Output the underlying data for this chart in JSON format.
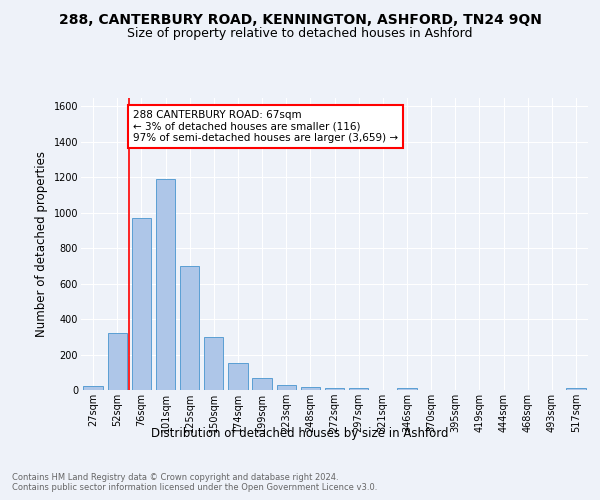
{
  "title": "288, CANTERBURY ROAD, KENNINGTON, ASHFORD, TN24 9QN",
  "subtitle": "Size of property relative to detached houses in Ashford",
  "xlabel": "Distribution of detached houses by size in Ashford",
  "ylabel": "Number of detached properties",
  "footnote": "Contains HM Land Registry data © Crown copyright and database right 2024.\nContains public sector information licensed under the Open Government Licence v3.0.",
  "bins": [
    "27sqm",
    "52sqm",
    "76sqm",
    "101sqm",
    "125sqm",
    "150sqm",
    "174sqm",
    "199sqm",
    "223sqm",
    "248sqm",
    "272sqm",
    "297sqm",
    "321sqm",
    "346sqm",
    "370sqm",
    "395sqm",
    "419sqm",
    "444sqm",
    "468sqm",
    "493sqm",
    "517sqm"
  ],
  "values": [
    25,
    320,
    970,
    1190,
    700,
    300,
    150,
    70,
    30,
    15,
    10,
    10,
    0,
    10,
    0,
    0,
    0,
    0,
    0,
    0,
    10
  ],
  "bar_color": "#aec6e8",
  "bar_edge_color": "#5a9fd4",
  "vline_color": "red",
  "annotation_text": "288 CANTERBURY ROAD: 67sqm\n← 3% of detached houses are smaller (116)\n97% of semi-detached houses are larger (3,659) →",
  "annotation_box_color": "white",
  "annotation_box_edge": "red",
  "ylim": [
    0,
    1650
  ],
  "yticks": [
    0,
    200,
    400,
    600,
    800,
    1000,
    1200,
    1400,
    1600
  ],
  "background_color": "#eef2f9",
  "plot_background": "#eef2f9",
  "title_fontsize": 10,
  "subtitle_fontsize": 9,
  "axis_label_fontsize": 8.5,
  "tick_fontsize": 7,
  "footnote_fontsize": 6,
  "annotation_fontsize": 7.5
}
